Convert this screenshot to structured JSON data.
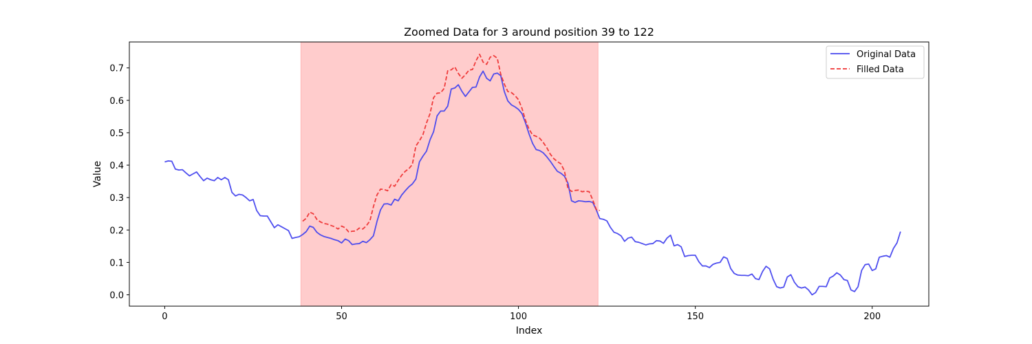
{
  "chart_data": {
    "type": "line",
    "title": "Zoomed Data for 3 around position 39 to 122",
    "xlabel": "Index",
    "ylabel": "Value",
    "xlim": [
      -10,
      216
    ],
    "ylim": [
      -0.035,
      0.78
    ],
    "xticks": [
      0,
      50,
      100,
      150,
      200
    ],
    "yticks": [
      0.0,
      0.1,
      0.2,
      0.3,
      0.4,
      0.5,
      0.6,
      0.7
    ],
    "highlight": {
      "x_start": 38.5,
      "x_end": 122.5,
      "color": "#ff9999"
    },
    "grid": false,
    "legend": "top-right",
    "series": [
      {
        "name": "Original Data",
        "color": "#4444ee",
        "dash": "solid",
        "x_start": 0,
        "values": [
          0.41,
          0.413,
          0.412,
          0.388,
          0.385,
          0.386,
          0.376,
          0.367,
          0.373,
          0.379,
          0.365,
          0.352,
          0.36,
          0.355,
          0.352,
          0.362,
          0.355,
          0.362,
          0.355,
          0.316,
          0.305,
          0.31,
          0.308,
          0.3,
          0.29,
          0.294,
          0.26,
          0.244,
          0.243,
          0.243,
          0.225,
          0.207,
          0.216,
          0.21,
          0.204,
          0.198,
          0.174,
          0.177,
          0.179,
          0.186,
          0.195,
          0.212,
          0.208,
          0.193,
          0.185,
          0.18,
          0.177,
          0.174,
          0.17,
          0.167,
          0.16,
          0.172,
          0.167,
          0.155,
          0.157,
          0.158,
          0.165,
          0.161,
          0.17,
          0.182,
          0.226,
          0.262,
          0.28,
          0.281,
          0.277,
          0.295,
          0.29,
          0.308,
          0.321,
          0.333,
          0.342,
          0.357,
          0.41,
          0.428,
          0.443,
          0.478,
          0.503,
          0.552,
          0.567,
          0.567,
          0.582,
          0.635,
          0.638,
          0.648,
          0.628,
          0.612,
          0.626,
          0.64,
          0.641,
          0.672,
          0.69,
          0.668,
          0.66,
          0.681,
          0.684,
          0.676,
          0.627,
          0.598,
          0.586,
          0.58,
          0.572,
          0.559,
          0.53,
          0.496,
          0.467,
          0.448,
          0.445,
          0.438,
          0.426,
          0.412,
          0.396,
          0.381,
          0.375,
          0.366,
          0.344,
          0.29,
          0.285,
          0.29,
          0.289,
          0.287,
          0.288,
          0.285,
          0.262,
          0.235,
          0.233,
          0.228,
          0.208,
          0.193,
          0.189,
          0.182,
          0.165,
          0.175,
          0.178,
          0.164,
          0.162,
          0.158,
          0.154,
          0.157,
          0.158,
          0.167,
          0.166,
          0.159,
          0.175,
          0.184,
          0.151,
          0.155,
          0.148,
          0.118,
          0.121,
          0.122,
          0.122,
          0.102,
          0.089,
          0.089,
          0.084,
          0.094,
          0.098,
          0.1,
          0.117,
          0.112,
          0.081,
          0.066,
          0.061,
          0.06,
          0.06,
          0.059,
          0.064,
          0.05,
          0.047,
          0.072,
          0.088,
          0.08,
          0.048,
          0.025,
          0.021,
          0.024,
          0.055,
          0.062,
          0.039,
          0.025,
          0.021,
          0.024,
          0.015,
          0.0,
          0.007,
          0.026,
          0.026,
          0.025,
          0.052,
          0.058,
          0.068,
          0.061,
          0.047,
          0.044,
          0.015,
          0.01,
          0.025,
          0.075,
          0.093,
          0.095,
          0.075,
          0.08,
          0.116,
          0.119,
          0.121,
          0.116,
          0.143,
          0.16,
          0.195
        ]
      },
      {
        "name": "Filled Data",
        "color": "#ee3333",
        "dash": "dashed",
        "x_start": 39,
        "values": [
          0.227,
          0.236,
          0.255,
          0.25,
          0.233,
          0.225,
          0.22,
          0.218,
          0.214,
          0.21,
          0.203,
          0.212,
          0.207,
          0.194,
          0.196,
          0.197,
          0.206,
          0.203,
          0.213,
          0.228,
          0.272,
          0.308,
          0.326,
          0.325,
          0.321,
          0.34,
          0.335,
          0.353,
          0.369,
          0.381,
          0.389,
          0.402,
          0.459,
          0.475,
          0.494,
          0.53,
          0.559,
          0.608,
          0.622,
          0.623,
          0.637,
          0.691,
          0.694,
          0.703,
          0.683,
          0.668,
          0.679,
          0.693,
          0.695,
          0.722,
          0.742,
          0.718,
          0.711,
          0.733,
          0.738,
          0.73,
          0.68,
          0.65,
          0.627,
          0.624,
          0.615,
          0.602,
          0.575,
          0.538,
          0.511,
          0.493,
          0.489,
          0.483,
          0.47,
          0.454,
          0.434,
          0.42,
          0.411,
          0.404,
          0.382,
          0.328,
          0.319,
          0.322,
          0.323,
          0.318,
          0.32,
          0.318,
          0.293,
          0.263,
          0.26
        ]
      }
    ]
  }
}
